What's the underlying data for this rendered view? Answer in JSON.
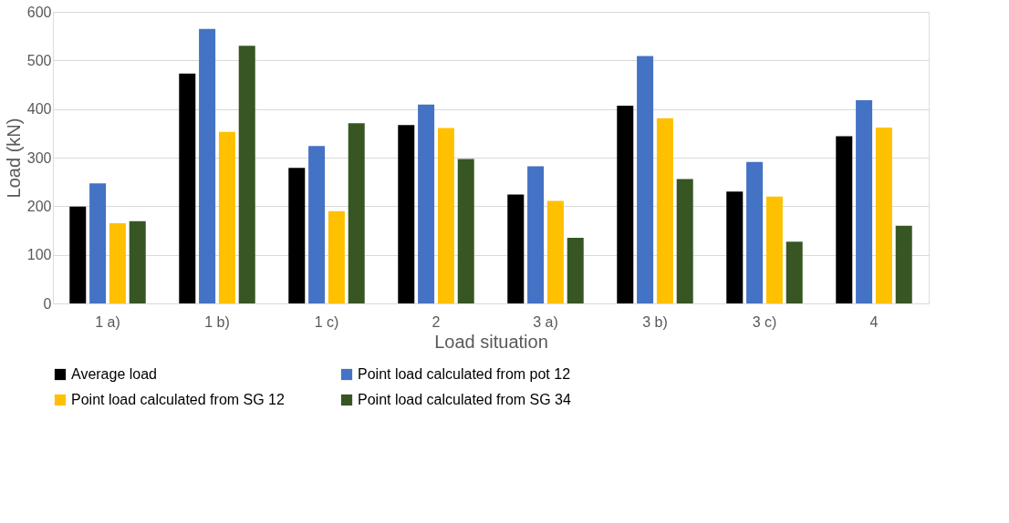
{
  "chart_data": {
    "type": "bar",
    "xlabel": "Load situation",
    "ylabel": "Load  (kN)",
    "categories": [
      "1 a)",
      "1 b)",
      "1 c)",
      "2",
      "3 a)",
      "3 b)",
      "3 c)",
      "4"
    ],
    "series": [
      {
        "name": "Average load",
        "color": "#000000",
        "values": [
          199,
          473,
          279,
          367,
          224,
          407,
          230,
          344
        ]
      },
      {
        "name": "Point load calculated from pot 12",
        "color": "#4472c4",
        "values": [
          247,
          565,
          324,
          409,
          282,
          509,
          291,
          418
        ]
      },
      {
        "name": "Point load calculated from SG 12",
        "color": "#ffc000",
        "values": [
          165,
          353,
          190,
          361,
          211,
          381,
          220,
          362
        ]
      },
      {
        "name": "Point load calculated from SG 34",
        "color": "#375623",
        "values": [
          169,
          530,
          371,
          297,
          135,
          256,
          127,
          160
        ]
      }
    ],
    "ylim": [
      0,
      600
    ],
    "yticks": [
      0,
      100,
      200,
      300,
      400,
      500,
      600
    ],
    "grid": "y",
    "legend": "bottom"
  }
}
